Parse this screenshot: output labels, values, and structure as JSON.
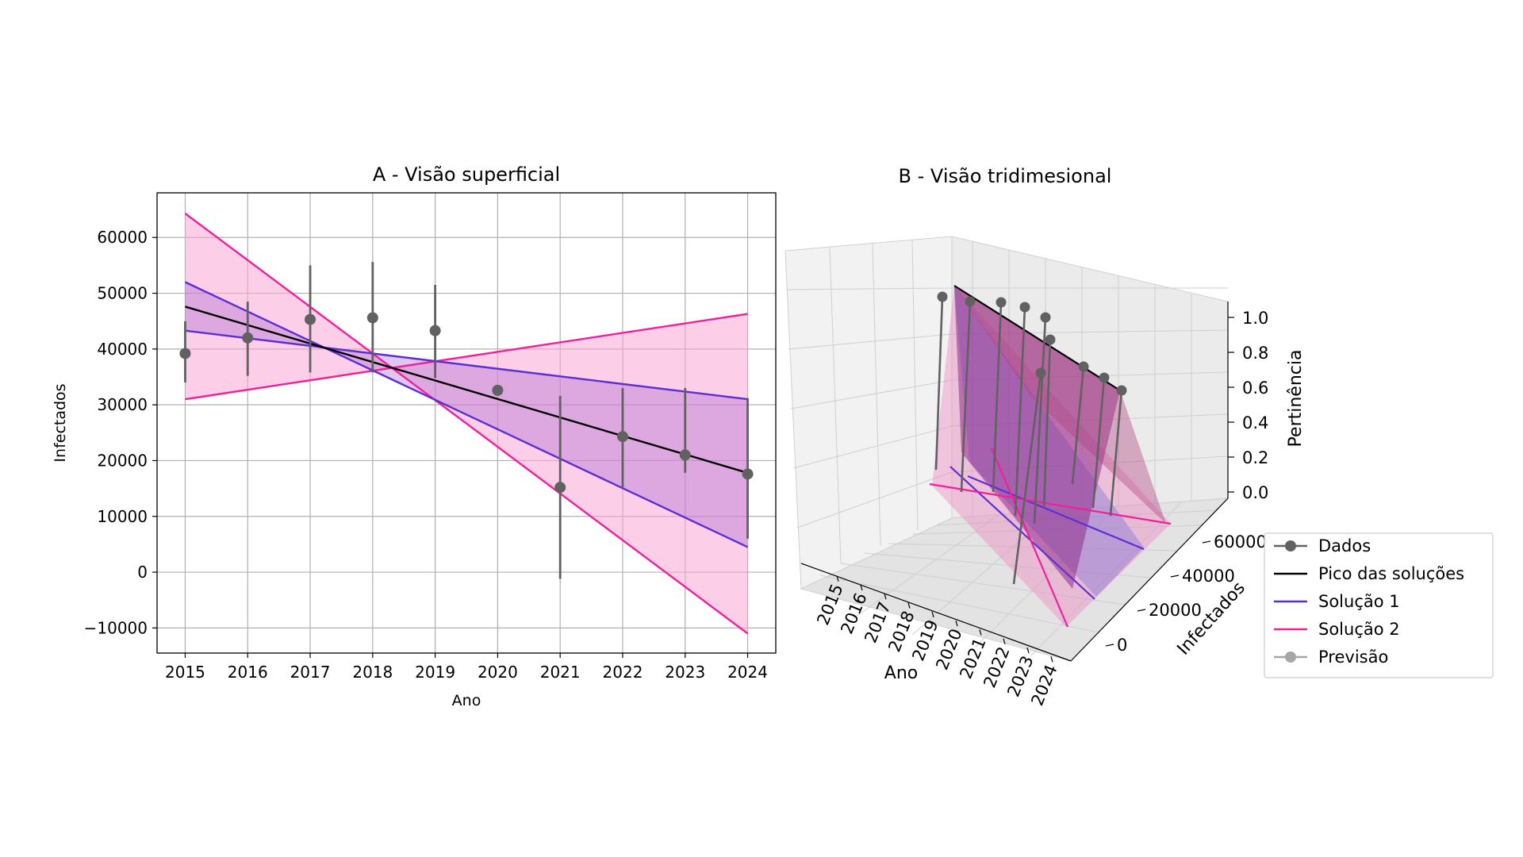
{
  "chart_data": [
    {
      "type": "line",
      "title": "A - Visão superficial",
      "xlabel": "Ano",
      "ylabel": "Infectados",
      "xlim": [
        2014.55,
        2024.45
      ],
      "ylim": [
        -14500,
        68000
      ],
      "grid": true,
      "x_ticks": [
        2015,
        2016,
        2017,
        2018,
        2019,
        2020,
        2021,
        2022,
        2023,
        2024
      ],
      "y_ticks": [
        -10000,
        0,
        10000,
        20000,
        30000,
        40000,
        50000,
        60000
      ],
      "y_tick_labels": [
        "−10000",
        "0",
        "10000",
        "20000",
        "30000",
        "40000",
        "50000",
        "60000"
      ],
      "series": [
        {
          "name": "Dados",
          "role": "data-points",
          "color": "#616161",
          "x": [
            2015,
            2016,
            2017,
            2018,
            2019,
            2020,
            2021,
            2022,
            2023,
            2024
          ],
          "y": [
            39200,
            42000,
            45300,
            45600,
            43300,
            32600,
            15200,
            24300,
            21000,
            17600
          ],
          "err_low": [
            34000,
            35200,
            35800,
            35800,
            34800,
            32600,
            -1200,
            15200,
            17800,
            6000
          ],
          "err_high": [
            45000,
            48500,
            55000,
            55600,
            51500,
            32600,
            31600,
            33000,
            33000,
            31200
          ]
        },
        {
          "name": "Pico das soluções",
          "color": "#000000",
          "x": [
            2015,
            2024
          ],
          "y": [
            47600,
            17800
          ]
        },
        {
          "name": "Solução 1",
          "color": "#5b2fd6",
          "lower": {
            "x": [
              2015,
              2024
            ],
            "y": [
              43300,
              31000
            ]
          },
          "upper": {
            "x": [
              2015,
              2024
            ],
            "y": [
              52000,
              4500
            ]
          }
        },
        {
          "name": "Solução 2",
          "color": "#f0209a",
          "lower": {
            "x": [
              2015,
              2024
            ],
            "y": [
              31000,
              46300
            ]
          },
          "upper": {
            "x": [
              2015,
              2024
            ],
            "y": [
              64300,
              -11000
            ]
          }
        }
      ]
    },
    {
      "type": "surface3d",
      "title": "B - Visão tridimesional",
      "xlabel": "Ano",
      "ylabel": "Infectados",
      "zlabel": "Pertinência",
      "x_ticks": [
        "2015",
        "2016",
        "2017",
        "2018",
        "2019",
        "2020",
        "2021",
        "2022",
        "2023",
        "2024"
      ],
      "y_ticks": [
        "0",
        "20000",
        "40000",
        "60000"
      ],
      "z_ticks": [
        "0.0",
        "0.2",
        "0.4",
        "0.6",
        "0.8",
        "1.0"
      ],
      "legend": {
        "placement": "lower-right",
        "entries": [
          {
            "label": "Dados",
            "color": "#616161",
            "marker": "circle"
          },
          {
            "label": "Pico das soluções",
            "color": "#000000",
            "marker": "none"
          },
          {
            "label": "Solução 1",
            "color": "#5b2fd6",
            "marker": "none"
          },
          {
            "label": "Solução 2",
            "color": "#f0209a",
            "marker": "none"
          },
          {
            "label": "Previsão",
            "color": "#a6a6a6",
            "marker": "circle"
          }
        ]
      }
    }
  ]
}
